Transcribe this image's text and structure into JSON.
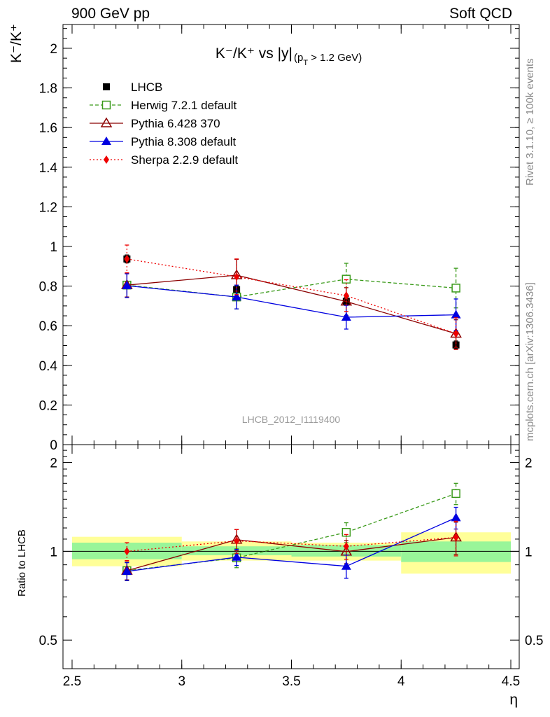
{
  "header": {
    "left": "900 GeV pp",
    "right": "Soft QCD"
  },
  "side_text": {
    "rivet": "Rivet 3.1.10, ≥ 100k events",
    "mcplots": "mcplots.cern.ch [arXiv:1306.3436]"
  },
  "colors": {
    "lhcb": "#000000",
    "herwig": "#3a9a1a",
    "pythia6": "#8b0000",
    "pythia8": "#0000e0",
    "sherpa": "#ee0000",
    "band_inner": "#99f599",
    "band_outer": "#ffff99"
  },
  "chart_data": [
    {
      "type": "scatter",
      "title_main": "K⁻/K⁺ vs |y|",
      "title_sub": "(p",
      "title_sub_index": "T",
      "title_sub_tail": " > 1.2 GeV)",
      "ylabel": "K⁻/K⁺",
      "watermark": "LHCB_2012_I1119400",
      "xlim": [
        2.5,
        4.5
      ],
      "ylim": [
        0,
        2.12
      ],
      "yticks": [
        0,
        0.2,
        0.4,
        0.6,
        0.8,
        1,
        1.2,
        1.4,
        1.6,
        1.8,
        2
      ],
      "ytick_labels": [
        "0",
        "0.2",
        "0.4",
        "0.6",
        "0.8",
        "1",
        "1.2",
        "1.4",
        "1.6",
        "1.8",
        "2"
      ],
      "legend_position": "top-left",
      "x": [
        2.75,
        3.25,
        3.75,
        4.25
      ],
      "series": [
        {
          "name": "LHCB",
          "key": "lhcb",
          "values": [
            0.937,
            0.782,
            0.723,
            0.503
          ],
          "err": [
            0.02,
            0.02,
            0.02,
            0.02
          ]
        },
        {
          "name": "Herwig 7.2.1 default",
          "key": "herwig",
          "values": [
            0.805,
            0.745,
            0.835,
            0.79
          ],
          "err": [
            0.06,
            0.06,
            0.08,
            0.1
          ]
        },
        {
          "name": "Pythia 6.428 370",
          "key": "pythia6",
          "values": [
            0.805,
            0.855,
            0.722,
            0.56
          ],
          "err": [
            0.06,
            0.08,
            0.07,
            0.07
          ]
        },
        {
          "name": "Pythia 8.308 default",
          "key": "pythia8",
          "values": [
            0.802,
            0.745,
            0.643,
            0.655
          ],
          "err": [
            0.06,
            0.06,
            0.06,
            0.08
          ]
        },
        {
          "name": "Sherpa 2.2.9 default",
          "key": "sherpa",
          "values": [
            0.937,
            0.847,
            0.752,
            0.56
          ],
          "err": [
            0.07,
            0.09,
            0.08,
            0.08
          ]
        }
      ]
    },
    {
      "type": "scatter",
      "ylabel": "Ratio to LHCB",
      "yscale": "log",
      "xlim": [
        2.5,
        4.5
      ],
      "ylim": [
        0.4,
        2.3
      ],
      "yticks": [
        0.5,
        1,
        2
      ],
      "ytick_labels": [
        "0.5",
        "1",
        "2"
      ],
      "xticks": [
        2.5,
        3,
        3.5,
        4,
        4.5
      ],
      "xtick_labels": [
        "2.5",
        "3",
        "3.5",
        "4",
        "4.5"
      ],
      "xlabel": "η",
      "bands": [
        {
          "x0": 2.5,
          "x1": 3.0,
          "inner": [
            0.94,
            1.07
          ],
          "outer": [
            0.89,
            1.12
          ]
        },
        {
          "x0": 3.0,
          "x1": 3.5,
          "inner": [
            0.97,
            1.04
          ],
          "outer": [
            0.93,
            1.08
          ]
        },
        {
          "x0": 3.5,
          "x1": 4.0,
          "inner": [
            0.96,
            1.05
          ],
          "outer": [
            0.93,
            1.07
          ]
        },
        {
          "x0": 4.0,
          "x1": 4.5,
          "inner": [
            0.92,
            1.08
          ],
          "outer": [
            0.84,
            1.16
          ]
        }
      ],
      "x": [
        2.75,
        3.25,
        3.75,
        4.25
      ],
      "series": [
        {
          "name": "Herwig 7.2.1 default",
          "key": "herwig",
          "values": [
            0.86,
            0.95,
            1.16,
            1.57
          ],
          "err": [
            0.06,
            0.07,
            0.09,
            0.13
          ]
        },
        {
          "name": "Pythia 6.428 370",
          "key": "pythia6",
          "values": [
            0.86,
            1.095,
            0.998,
            1.115
          ],
          "err": [
            0.06,
            0.09,
            0.09,
            0.14
          ]
        },
        {
          "name": "Pythia 8.308 default",
          "key": "pythia8",
          "values": [
            0.855,
            0.955,
            0.89,
            1.3
          ],
          "err": [
            0.06,
            0.06,
            0.08,
            0.11
          ]
        },
        {
          "name": "Sherpa 2.2.9 default",
          "key": "sherpa",
          "values": [
            1.0,
            1.085,
            1.04,
            1.115
          ],
          "err": [
            0.07,
            0.1,
            0.1,
            0.15
          ]
        }
      ]
    }
  ]
}
